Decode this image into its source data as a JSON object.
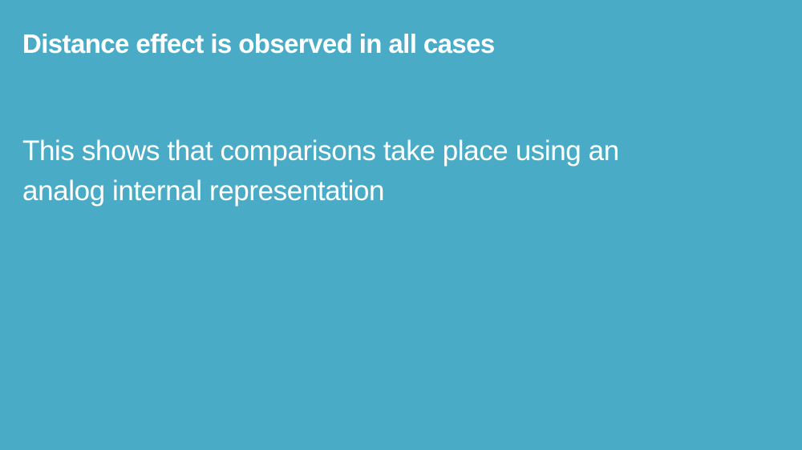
{
  "slide": {
    "background_color": "#4aabc6",
    "text_color": "#ffffff",
    "title": "Distance effect is observed in all cases",
    "body_lines": [
      "This shows that comparisons take place using an",
      "analog internal representation"
    ]
  }
}
